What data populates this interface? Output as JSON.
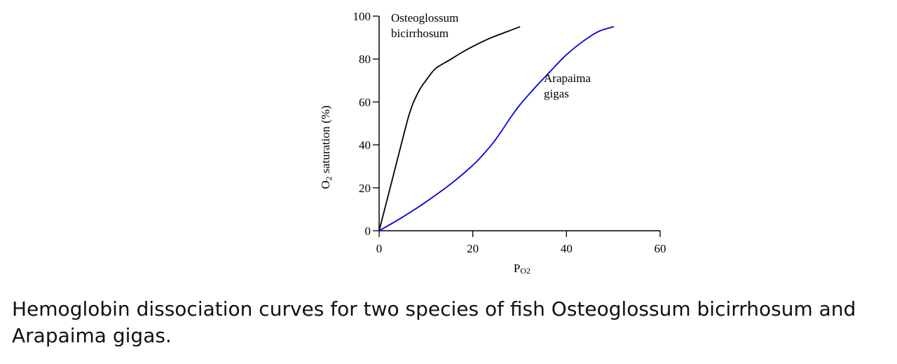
{
  "chart_data": {
    "type": "line",
    "xlabel": "P",
    "xlabel_sub": "O2",
    "ylabel": "O",
    "ylabel_sub": "2",
    "ylabel_rest": " saturation (%)",
    "xlim": [
      0,
      60
    ],
    "ylim": [
      0,
      100
    ],
    "x_ticks": [
      "0",
      "20",
      "40",
      "60"
    ],
    "y_ticks": [
      "0",
      "20",
      "40",
      "60",
      "80",
      "100"
    ],
    "grid": false,
    "series": [
      {
        "name": "Osteoglossum bicirrhosum",
        "label_lines": [
          "Osteoglossum",
          "bicirrhosum"
        ],
        "color": "#000000",
        "x": [
          0,
          2,
          4,
          6,
          7,
          8,
          9,
          10,
          11,
          12,
          13,
          15,
          18,
          21,
          24,
          27,
          30
        ],
        "y": [
          0,
          17,
          34,
          51,
          58,
          63,
          67,
          70,
          73,
          75.5,
          77,
          79.5,
          83.5,
          87,
          90,
          92.5,
          95
        ]
      },
      {
        "name": "Arapaima gigas",
        "label_lines": [
          "Arapaima",
          "gigas"
        ],
        "color": "#0000e0",
        "x": [
          0,
          4,
          8,
          12,
          16,
          20,
          22,
          24,
          26,
          28,
          30,
          33,
          36,
          40,
          44,
          47,
          50
        ],
        "y": [
          0,
          5,
          10.5,
          16.5,
          23,
          30.5,
          35,
          40,
          46,
          52.5,
          58.5,
          66,
          73,
          82,
          89,
          93,
          95
        ]
      }
    ]
  },
  "caption": "Hemoglobin dissociation curves for two species of fish Osteoglossum bicirrhosum and Arapaima gigas."
}
